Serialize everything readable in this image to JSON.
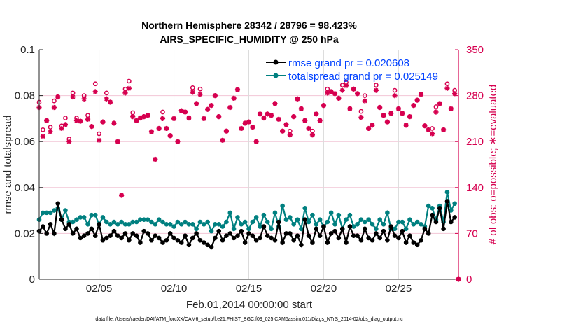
{
  "chart_data": {
    "type": "line",
    "title": [
      "Northern Hemisphere 28342 / 28796 = 98.423%",
      "AIRS_SPECIFIC_HUMIDITY @ 250 hPa"
    ],
    "xlabel": "Feb.01,2014 00:00:00 start",
    "ylabel": "rmse and totalspread",
    "ylabel_right": "# of obs: o=possible; ∗=evaluated",
    "footnote": "data file: /Users/raeder/DAI/ATM_forcXX/CAM6_setup/f.e21.FHIST_BGC.f09_025.CAM6assim.011/Diags_NTrS_2014-02/obs_diag_output.nc",
    "x_start": "2014-02-01 00:00",
    "x_step_hours": 6,
    "xlim_days": [
      1.0,
      29.0
    ],
    "x_ticks": [
      {
        "day": 5,
        "label": "02/05"
      },
      {
        "day": 10,
        "label": "02/10"
      },
      {
        "day": 15,
        "label": "02/15"
      },
      {
        "day": 20,
        "label": "02/20"
      },
      {
        "day": 25,
        "label": "02/25"
      }
    ],
    "ylim": [
      0,
      0.1
    ],
    "y_ticks": [
      "0",
      "0.02",
      "0.04",
      "0.06",
      "0.08",
      "0.1"
    ],
    "ylim_right": [
      0,
      350
    ],
    "y_ticks_right": [
      "0",
      "70",
      "140",
      "210",
      "280",
      "350"
    ],
    "grid": true,
    "legend_position": "top-right",
    "colors": {
      "rmse": "#000000",
      "totalspread": "#008080",
      "obs": "#d6004f",
      "legend_text": "#0041ff",
      "grid_h": "#f2c6d6",
      "grid_v": "#dcdcdc"
    },
    "series": [
      {
        "name": "rmse grand pr = 0.020608",
        "values": [
          0.021,
          0.023,
          0.02,
          0.024,
          0.02,
          0.033,
          0.026,
          0.022,
          0.024,
          0.02,
          0.022,
          0.018,
          0.019,
          0.02,
          0.022,
          0.019,
          0.024,
          0.017,
          0.018,
          0.019,
          0.021,
          0.019,
          0.018,
          0.02,
          0.017,
          0.02,
          0.019,
          0.016,
          0.021,
          0.02,
          0.017,
          0.019,
          0.018,
          0.016,
          0.017,
          0.02,
          0.018,
          0.017,
          0.016,
          0.019,
          0.015,
          0.018,
          0.02,
          0.017,
          0.016,
          0.015,
          0.014,
          0.018,
          0.021,
          0.017,
          0.019,
          0.02,
          0.018,
          0.019,
          0.021,
          0.016,
          0.02,
          0.019,
          0.017,
          0.018,
          0.023,
          0.019,
          0.018,
          0.017,
          0.025,
          0.016,
          0.02,
          0.02,
          0.017,
          0.019,
          0.015,
          0.026,
          0.019,
          0.016,
          0.022,
          0.019,
          0.023,
          0.016,
          0.02,
          0.021,
          0.018,
          0.022,
          0.016,
          0.023,
          0.019,
          0.019,
          0.017,
          0.022,
          0.018,
          0.017,
          0.02,
          0.018,
          0.021,
          0.017,
          0.023,
          0.019,
          0.018,
          0.021,
          0.016,
          0.019,
          0.016,
          0.015,
          0.017,
          0.022,
          0.02,
          0.028,
          0.025,
          0.031,
          0.022,
          0.034,
          0.025,
          0.027
        ]
      },
      {
        "name": "totalspread grand pr = 0.025149",
        "values": [
          0.026,
          0.029,
          0.029,
          0.029,
          0.03,
          0.031,
          0.026,
          0.03,
          0.025,
          0.025,
          0.026,
          0.027,
          0.027,
          0.024,
          0.028,
          0.028,
          0.024,
          0.027,
          0.025,
          0.024,
          0.025,
          0.024,
          0.025,
          0.024,
          0.024,
          0.025,
          0.025,
          0.026,
          0.026,
          0.026,
          0.025,
          0.024,
          0.026,
          0.025,
          0.024,
          0.024,
          0.023,
          0.025,
          0.024,
          0.025,
          0.024,
          0.024,
          0.022,
          0.025,
          0.024,
          0.025,
          0.021,
          0.024,
          0.024,
          0.023,
          0.025,
          0.029,
          0.022,
          0.027,
          0.024,
          0.025,
          0.022,
          0.025,
          0.027,
          0.023,
          0.028,
          0.025,
          0.022,
          0.029,
          0.023,
          0.032,
          0.026,
          0.027,
          0.024,
          0.026,
          0.022,
          0.031,
          0.025,
          0.028,
          0.024,
          0.026,
          0.023,
          0.025,
          0.029,
          0.024,
          0.028,
          0.022,
          0.026,
          0.028,
          0.023,
          0.024,
          0.026,
          0.025,
          0.026,
          0.024,
          0.022,
          0.026,
          0.024,
          0.029,
          0.022,
          0.022,
          0.025,
          0.025,
          0.022,
          0.026,
          0.024,
          0.025,
          0.024,
          0.023,
          0.032,
          0.031,
          0.026,
          0.032,
          0.025,
          0.038,
          0.03,
          0.033
        ]
      }
    ],
    "obs_possible": [
      270,
      228,
      242,
      232,
      272,
      278,
      234,
      246,
      214,
      284,
      246,
      241,
      280,
      250,
      233,
      298,
      222,
      240,
      284,
      270,
      238,
      210,
      128,
      290,
      302,
      254,
      242,
      246,
      248,
      250,
      225,
      183,
      230,
      255,
      230,
      219,
      245,
      210,
      257,
      255,
      246,
      292,
      268,
      290,
      245,
      259,
      265,
      280,
      248,
      212,
      226,
      262,
      276,
      289,
      230,
      238,
      240,
      232,
      210,
      252,
      246,
      252,
      250,
      268,
      244,
      226,
      236,
      226,
      248,
      275,
      260,
      242,
      230,
      226,
      252,
      242,
      265,
      290,
      286,
      283,
      276,
      296,
      300,
      260,
      290,
      283,
      256,
      280,
      230,
      235,
      296,
      262,
      250,
      240,
      253,
      288,
      260,
      253,
      235,
      248,
      265,
      273,
      282,
      234,
      228,
      230,
      263,
      268,
      228,
      298,
      260,
      288,
      0
    ],
    "obs_evaluated": [
      262,
      218,
      242,
      225,
      262,
      278,
      230,
      236,
      210,
      278,
      242,
      241,
      275,
      244,
      233,
      286,
      212,
      240,
      275,
      270,
      238,
      210,
      128,
      284,
      291,
      248,
      242,
      246,
      248,
      250,
      225,
      183,
      230,
      245,
      230,
      219,
      245,
      210,
      257,
      255,
      246,
      285,
      268,
      282,
      245,
      259,
      265,
      280,
      248,
      212,
      226,
      262,
      276,
      289,
      230,
      238,
      240,
      232,
      210,
      252,
      246,
      252,
      250,
      268,
      244,
      226,
      236,
      220,
      248,
      275,
      260,
      242,
      230,
      220,
      252,
      242,
      265,
      284,
      286,
      283,
      276,
      288,
      295,
      260,
      290,
      283,
      247,
      272,
      230,
      235,
      288,
      262,
      250,
      240,
      253,
      280,
      260,
      253,
      235,
      248,
      265,
      273,
      282,
      234,
      228,
      222,
      255,
      268,
      228,
      291,
      260,
      283,
      0
    ]
  }
}
